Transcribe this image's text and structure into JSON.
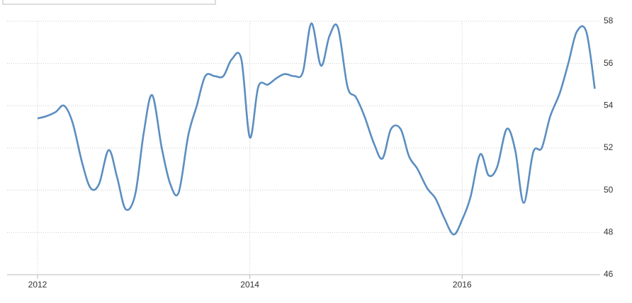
{
  "chart_data": {
    "type": "line",
    "x": [
      2012,
      2012.08,
      2012.17,
      2012.25,
      2012.33,
      2012.42,
      2012.5,
      2012.58,
      2012.67,
      2012.75,
      2012.83,
      2012.92,
      2013,
      2013.08,
      2013.17,
      2013.25,
      2013.33,
      2013.42,
      2013.5,
      2013.58,
      2013.67,
      2013.75,
      2013.83,
      2013.92,
      2014,
      2014.08,
      2014.17,
      2014.25,
      2014.33,
      2014.42,
      2014.5,
      2014.58,
      2014.67,
      2014.75,
      2014.83,
      2014.92,
      2015,
      2015.08,
      2015.17,
      2015.25,
      2015.33,
      2015.42,
      2015.5,
      2015.58,
      2015.67,
      2015.75,
      2015.83,
      2015.92,
      2016,
      2016.08,
      2016.17,
      2016.25,
      2016.33,
      2016.42,
      2016.5,
      2016.58,
      2016.67,
      2016.75,
      2016.83,
      2016.92,
      2017,
      2017.08,
      2017.17,
      2017.25
    ],
    "series": [
      {
        "color": "#5b8ec0",
        "values": [
          53.4,
          53.5,
          53.7,
          54.0,
          53.2,
          51.3,
          50.1,
          50.3,
          51.9,
          50.6,
          49.1,
          49.8,
          52.7,
          54.5,
          52.0,
          50.3,
          49.9,
          52.6,
          54.0,
          55.4,
          55.4,
          55.4,
          56.2,
          56.2,
          52.5,
          54.9,
          55.0,
          55.3,
          55.5,
          55.4,
          55.6,
          57.9,
          55.9,
          57.3,
          57.7,
          54.9,
          54.4,
          53.5,
          52.2,
          51.5,
          52.9,
          52.9,
          51.6,
          51.0,
          50.1,
          49.6,
          48.7,
          47.9,
          48.6,
          49.7,
          51.7,
          50.7,
          51.1,
          52.9,
          51.9,
          49.4,
          51.8,
          52.0,
          53.5,
          54.6,
          56.0,
          57.5,
          57.5,
          54.8
        ]
      }
    ],
    "xlim": [
      2012,
      2017.3
    ],
    "xticks": [
      2012,
      2014,
      2016
    ],
    "ylim": [
      46,
      58
    ],
    "yticks": [
      46,
      48,
      50,
      52,
      54,
      56,
      58
    ],
    "grid": true
  }
}
